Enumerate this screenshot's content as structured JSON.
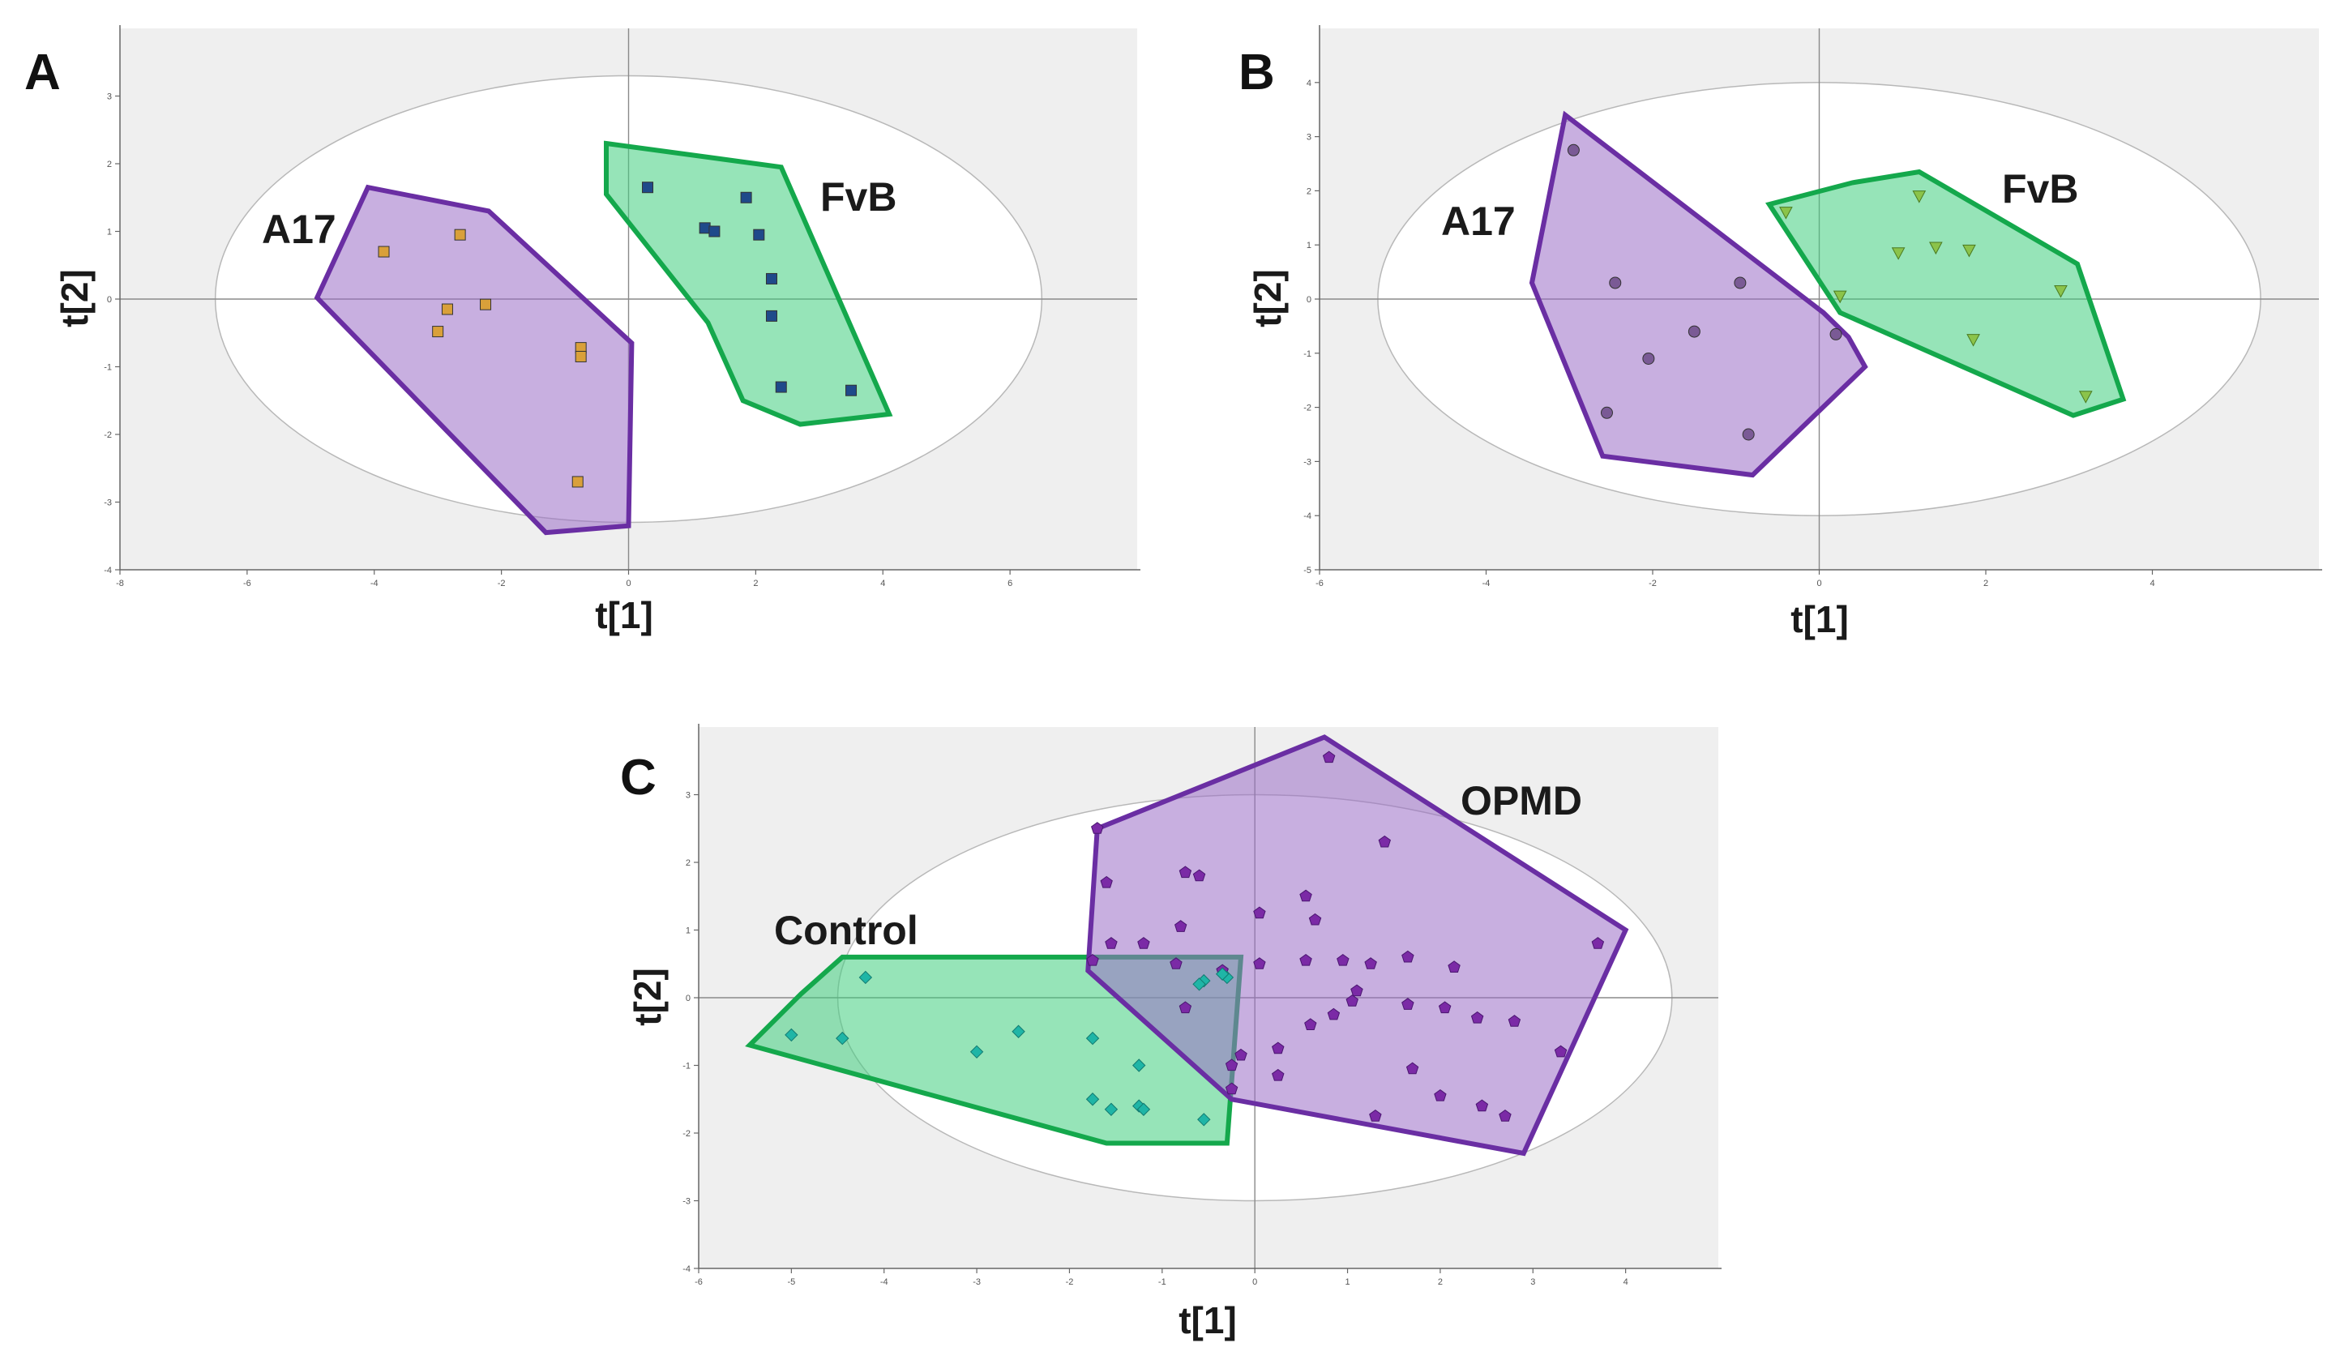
{
  "figure": {
    "panels": [
      "A",
      "B",
      "C"
    ]
  },
  "colors": {
    "plot_bg": "#efefef",
    "ellipse_fill": "#ffffff",
    "ellipse_stroke": "#b8b8b8",
    "purple_fill": "#9b6dc6",
    "purple_stroke": "#6a2ea3",
    "green_fill": "#3fce7d",
    "green_stroke": "#14a84c"
  },
  "chart_data": [
    {
      "panel": "A",
      "type": "scatter",
      "xlabel": "t[1]",
      "ylabel": "t[2]",
      "xlim": [
        -8,
        8
      ],
      "ylim": [
        -4,
        4
      ],
      "xticks": [
        -8,
        -6,
        -4,
        -2,
        0,
        2,
        4,
        6
      ],
      "yticks": [
        -4,
        -3,
        -2,
        -1,
        0,
        1,
        2,
        3
      ],
      "hotelling_ellipse": {
        "cx": 0,
        "cy": 0,
        "rx": 6.5,
        "ry": 3.3
      },
      "groups": [
        {
          "name": "A17",
          "marker": "square",
          "marker_color": "#d9a03a",
          "color_key": "purple",
          "hull": [
            [
              -4.1,
              1.65
            ],
            [
              -2.2,
              1.3
            ],
            [
              0.05,
              -0.65
            ],
            [
              0,
              -3.35
            ],
            [
              -1.3,
              -3.45
            ],
            [
              -4.9,
              0.02
            ]
          ],
          "points": [
            [
              -3.85,
              0.7
            ],
            [
              -2.65,
              0.95
            ],
            [
              -2.25,
              -0.08
            ],
            [
              -2.85,
              -0.15
            ],
            [
              -3.0,
              -0.48
            ],
            [
              -0.75,
              -0.72
            ],
            [
              -0.75,
              -0.85
            ],
            [
              -0.8,
              -2.7
            ]
          ]
        },
        {
          "name": "FvB",
          "marker": "square",
          "marker_color": "#1f4a8a",
          "color_key": "green",
          "hull": [
            [
              -0.35,
              2.3
            ],
            [
              2.4,
              1.95
            ],
            [
              4.1,
              -1.7
            ],
            [
              2.7,
              -1.85
            ],
            [
              1.8,
              -1.5
            ],
            [
              1.25,
              -0.35
            ],
            [
              -0.35,
              1.55
            ]
          ],
          "points": [
            [
              0.3,
              1.65
            ],
            [
              1.2,
              1.05
            ],
            [
              1.35,
              1.0
            ],
            [
              1.85,
              1.5
            ],
            [
              2.05,
              0.95
            ],
            [
              2.25,
              0.3
            ],
            [
              2.25,
              -0.25
            ],
            [
              2.4,
              -1.3
            ],
            [
              3.5,
              -1.35
            ]
          ]
        }
      ],
      "labels": [
        "A17",
        "FvB"
      ]
    },
    {
      "panel": "B",
      "type": "scatter",
      "xlabel": "t[1]",
      "ylabel": "t[2]",
      "xlim": [
        -6,
        6
      ],
      "ylim": [
        -5,
        5
      ],
      "xticks": [
        -6,
        -4,
        -2,
        0,
        2,
        4
      ],
      "yticks": [
        -5,
        -4,
        -3,
        -2,
        -1,
        0,
        1,
        2,
        3,
        4
      ],
      "hotelling_ellipse": {
        "cx": 0,
        "cy": 0,
        "rx": 5.3,
        "ry": 4.0
      },
      "groups": [
        {
          "name": "A17",
          "marker": "circle",
          "marker_color": "#7a5a95",
          "color_key": "purple",
          "hull": [
            [
              -3.05,
              3.4
            ],
            [
              0.05,
              -0.25
            ],
            [
              0.35,
              -0.7
            ],
            [
              0.55,
              -1.25
            ],
            [
              -0.8,
              -3.25
            ],
            [
              -2.6,
              -2.9
            ],
            [
              -3.45,
              0.3
            ]
          ],
          "points": [
            [
              -2.95,
              2.75
            ],
            [
              -2.45,
              0.3
            ],
            [
              -2.05,
              -1.1
            ],
            [
              -1.5,
              -0.6
            ],
            [
              -0.95,
              0.3
            ],
            [
              -0.85,
              -2.5
            ],
            [
              -2.55,
              -2.1
            ],
            [
              0.2,
              -0.65
            ]
          ]
        },
        {
          "name": "FvB",
          "marker": "triangle",
          "marker_color": "#8bc34a",
          "color_key": "green",
          "hull": [
            [
              -0.6,
              1.75
            ],
            [
              0.4,
              2.15
            ],
            [
              1.2,
              2.35
            ],
            [
              3.1,
              0.65
            ],
            [
              3.65,
              -1.85
            ],
            [
              3.05,
              -2.15
            ],
            [
              0.25,
              -0.25
            ]
          ],
          "points": [
            [
              -0.4,
              1.6
            ],
            [
              1.2,
              1.9
            ],
            [
              0.95,
              0.85
            ],
            [
              1.4,
              0.95
            ],
            [
              1.8,
              0.9
            ],
            [
              0.25,
              0.05
            ],
            [
              1.85,
              -0.75
            ],
            [
              2.9,
              0.15
            ],
            [
              3.2,
              -1.8
            ]
          ]
        }
      ],
      "labels": [
        "A17",
        "FvB"
      ]
    },
    {
      "panel": "C",
      "type": "scatter",
      "xlabel": "t[1]",
      "ylabel": "t[2]",
      "xlim": [
        -6,
        5
      ],
      "ylim": [
        -4,
        4
      ],
      "xticks": [
        -6,
        -5,
        -4,
        -3,
        -2,
        -1,
        0,
        1,
        2,
        3,
        4
      ],
      "yticks": [
        -4,
        -3,
        -2,
        -1,
        0,
        1,
        2,
        3
      ],
      "hotelling_ellipse": {
        "cx": 0,
        "cy": 0,
        "rx": 4.5,
        "ry": 3.0
      },
      "groups": [
        {
          "name": "OPMD",
          "marker": "pentagon",
          "marker_color": "#7b2aa6",
          "color_key": "purple",
          "hull": [
            [
              -1.7,
              2.5
            ],
            [
              0.75,
              3.85
            ],
            [
              4.0,
              1.0
            ],
            [
              2.9,
              -2.3
            ],
            [
              -0.25,
              -1.5
            ],
            [
              -1.8,
              0.4
            ]
          ],
          "points": [
            [
              0.8,
              3.55
            ],
            [
              1.4,
              2.3
            ],
            [
              -1.7,
              2.5
            ],
            [
              -1.6,
              1.7
            ],
            [
              -0.75,
              1.85
            ],
            [
              -0.6,
              1.8
            ],
            [
              0.55,
              1.5
            ],
            [
              -0.8,
              1.05
            ],
            [
              0.05,
              1.25
            ],
            [
              0.65,
              1.15
            ],
            [
              -1.55,
              0.8
            ],
            [
              -1.2,
              0.8
            ],
            [
              -0.85,
              0.5
            ],
            [
              0.05,
              0.5
            ],
            [
              0.55,
              0.55
            ],
            [
              0.95,
              0.55
            ],
            [
              1.25,
              0.5
            ],
            [
              1.65,
              0.6
            ],
            [
              2.15,
              0.45
            ],
            [
              -1.75,
              0.55
            ],
            [
              -0.35,
              0.4
            ],
            [
              1.1,
              0.1
            ],
            [
              1.65,
              -0.1
            ],
            [
              2.05,
              -0.15
            ],
            [
              1.05,
              -0.05
            ],
            [
              -0.75,
              -0.15
            ],
            [
              0.6,
              -0.4
            ],
            [
              0.85,
              -0.25
            ],
            [
              0.25,
              -0.75
            ],
            [
              2.4,
              -0.3
            ],
            [
              2.8,
              -0.35
            ],
            [
              -0.15,
              -0.85
            ],
            [
              -0.25,
              -1.0
            ],
            [
              0.25,
              -1.15
            ],
            [
              1.7,
              -1.05
            ],
            [
              3.3,
              -0.8
            ],
            [
              -0.25,
              -1.35
            ],
            [
              2.0,
              -1.45
            ],
            [
              2.45,
              -1.6
            ],
            [
              2.7,
              -1.75
            ],
            [
              1.3,
              -1.75
            ],
            [
              3.7,
              0.8
            ]
          ]
        },
        {
          "name": "Control",
          "marker": "diamond",
          "marker_color": "#1fb5a6",
          "color_key": "green",
          "hull": [
            [
              -4.9,
              0.05
            ],
            [
              -4.45,
              0.6
            ],
            [
              -0.15,
              0.6
            ],
            [
              -0.3,
              -2.15
            ],
            [
              -1.6,
              -2.15
            ],
            [
              -5.45,
              -0.7
            ]
          ],
          "points": [
            [
              -4.2,
              0.3
            ],
            [
              -5.0,
              -0.55
            ],
            [
              -4.45,
              -0.6
            ],
            [
              -3.0,
              -0.8
            ],
            [
              -2.55,
              -0.5
            ],
            [
              -1.75,
              -0.6
            ],
            [
              -1.75,
              -1.5
            ],
            [
              -1.55,
              -1.65
            ],
            [
              -1.25,
              -1.0
            ],
            [
              -1.25,
              -1.6
            ],
            [
              -1.2,
              -1.65
            ],
            [
              -0.55,
              -1.8
            ],
            [
              -0.55,
              0.25
            ],
            [
              -0.3,
              0.3
            ],
            [
              -0.35,
              0.35
            ],
            [
              -0.6,
              0.2
            ]
          ]
        }
      ],
      "labels": [
        "Control",
        "OPMD"
      ]
    }
  ]
}
